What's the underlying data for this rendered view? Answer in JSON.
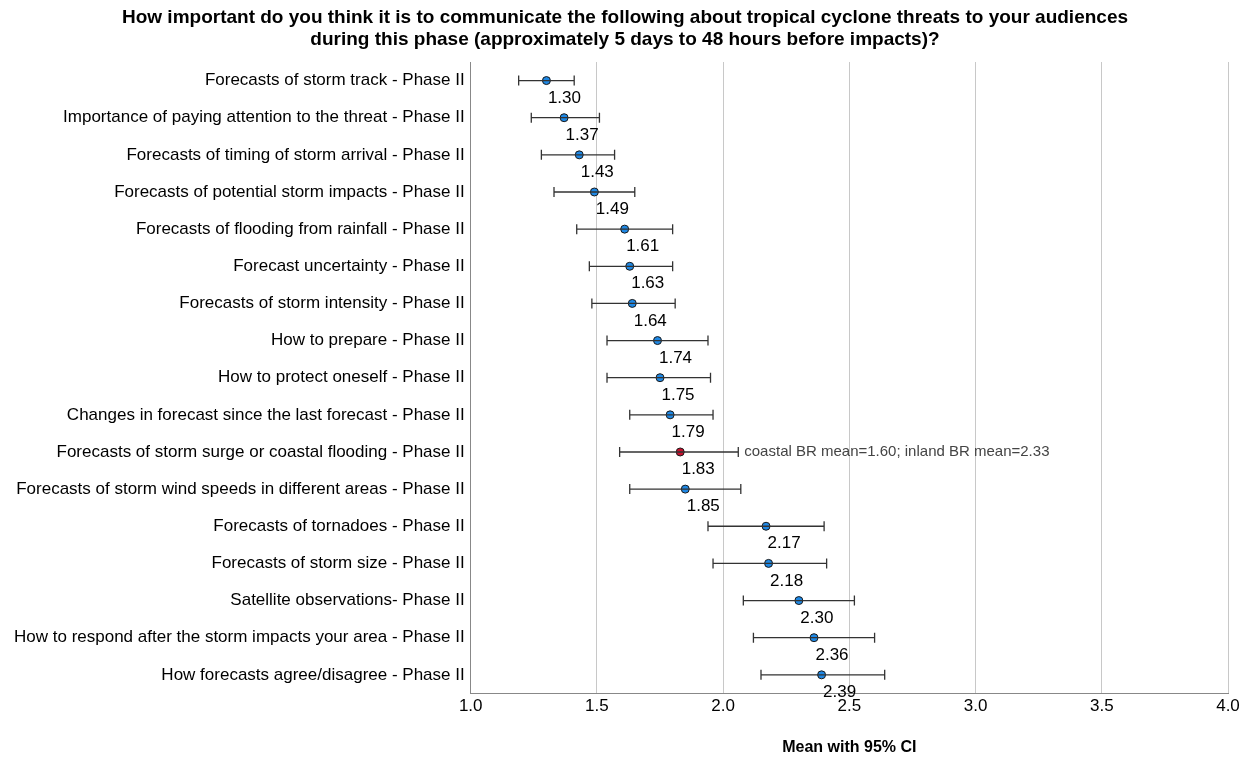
{
  "chart_data": {
    "type": "scatter",
    "orientation": "horizontal",
    "title": "How important do you think it is to communicate the following about tropical cyclone threats to your audiences during this phase (approximately 5 days to 48 hours before impacts)?",
    "xlabel": "Mean with 95% CI",
    "categories": [
      "Forecasts of storm track - Phase II",
      "Importance of paying attention to the threat - Phase II",
      "Forecasts of timing of storm arrival - Phase II",
      "Forecasts of potential storm impacts - Phase II",
      "Forecasts of flooding from rainfall - Phase II",
      "Forecast uncertainty - Phase II",
      "Forecasts of storm intensity - Phase II",
      "How to prepare - Phase II",
      "How to protect oneself - Phase II",
      "Changes in forecast since the last forecast - Phase II",
      "Forecasts of storm surge or coastal flooding - Phase II",
      "Forecasts of storm wind speeds in different areas - Phase II",
      "Forecasts of tornadoes - Phase II",
      "Forecasts of storm size - Phase II",
      "Satellite observations- Phase II",
      "How to respond after the storm impacts your area - Phase II",
      "How forecasts agree/disagree - Phase II"
    ],
    "values": [
      1.3,
      1.37,
      1.43,
      1.49,
      1.61,
      1.63,
      1.64,
      1.74,
      1.75,
      1.79,
      1.83,
      1.85,
      2.17,
      2.18,
      2.3,
      2.36,
      2.39
    ],
    "errors": [
      [
        1.19,
        1.41
      ],
      [
        1.24,
        1.51
      ],
      [
        1.28,
        1.57
      ],
      [
        1.33,
        1.65
      ],
      [
        1.42,
        1.8
      ],
      [
        1.47,
        1.8
      ],
      [
        1.48,
        1.81
      ],
      [
        1.54,
        1.94
      ],
      [
        1.54,
        1.95
      ],
      [
        1.63,
        1.96
      ],
      [
        1.59,
        2.06
      ],
      [
        1.63,
        2.07
      ],
      [
        1.94,
        2.4
      ],
      [
        1.96,
        2.41
      ],
      [
        2.08,
        2.52
      ],
      [
        2.12,
        2.6
      ],
      [
        2.15,
        2.64
      ]
    ],
    "colors": [
      "#1e88e5",
      "#1e88e5",
      "#1e88e5",
      "#1e88e5",
      "#1e88e5",
      "#1e88e5",
      "#1e88e5",
      "#1e88e5",
      "#1e88e5",
      "#1e88e5",
      "#c8102e",
      "#1e88e5",
      "#1e88e5",
      "#1e88e5",
      "#1e88e5",
      "#1e88e5",
      "#1e88e5"
    ],
    "value_labels": [
      "1.30",
      "1.37",
      "1.43",
      "1.49",
      "1.61",
      "1.63",
      "1.64",
      "1.74",
      "1.75",
      "1.79",
      "1.83",
      "1.85",
      "2.17",
      "2.18",
      "2.30",
      "2.36",
      "2.39"
    ],
    "marker": "circle",
    "grid": "x",
    "legend": false,
    "xlim": [
      1.0,
      4.0
    ],
    "xticks": [
      {
        "value": 1.0,
        "label": "1.0"
      },
      {
        "value": 1.5,
        "label": "1.5"
      },
      {
        "value": 2.0,
        "label": "2.0"
      },
      {
        "value": 2.5,
        "label": "2.5"
      },
      {
        "value": 3.0,
        "label": "3.0"
      },
      {
        "value": 3.5,
        "label": "3.5"
      },
      {
        "value": 4.0,
        "label": "4.0"
      }
    ],
    "annotations": [
      {
        "text": "coastal BR mean=1.60; inland BR mean=2.33",
        "x": 2.06,
        "y": "Forecasts of storm surge or coastal flooding - Phase II"
      }
    ]
  }
}
